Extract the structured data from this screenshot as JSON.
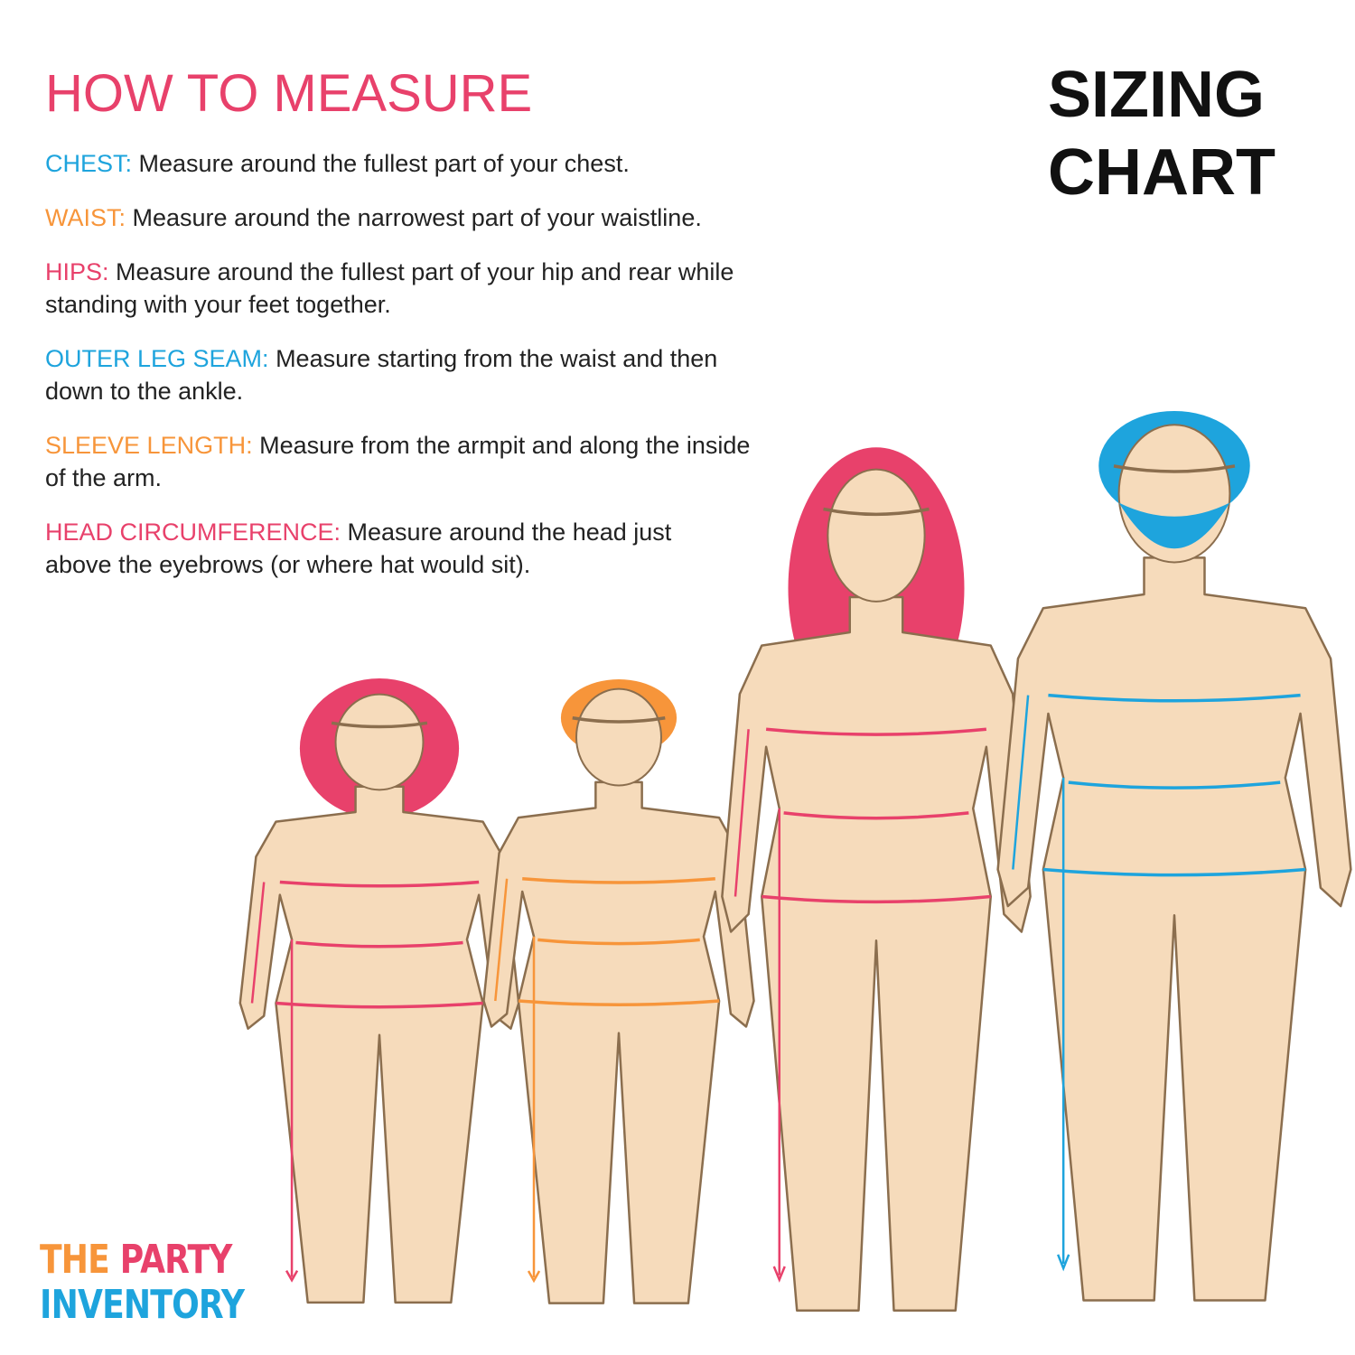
{
  "header": {
    "title": "HOW TO MEASURE",
    "sizing_line1": "SIZING",
    "sizing_line2": "CHART"
  },
  "colors": {
    "pink": "#e8416b",
    "blue": "#1ea4dd",
    "orange": "#f7953a",
    "skin": "#f6dbbb",
    "outline": "#8b6e4e"
  },
  "instructions": [
    {
      "label": "CHEST:",
      "text": " Measure around the fullest part of your chest.",
      "color": "#1ea4dd"
    },
    {
      "label": "WAIST:",
      "text": " Measure around the narrowest part of your waistline.",
      "color": "#f7953a"
    },
    {
      "label": "HIPS:",
      "text": " Measure around the fullest part of your hip and rear while standing with your feet together.",
      "color": "#e8416b"
    },
    {
      "label": "OUTER LEG SEAM:",
      "text": " Measure starting from the waist and then down to the ankle.",
      "color": "#1ea4dd"
    },
    {
      "label": "SLEEVE LENGTH:",
      "text": " Measure from the armpit and along the inside of the arm.",
      "color": "#f7953a"
    },
    {
      "label": "HEAD CIRCUMFERENCE:",
      "text": " Measure around the head just above the eyebrows (or where hat would sit).",
      "color": "#e8416b"
    }
  ],
  "logo": {
    "line1_a": "THE",
    "line1_b": "PARTY",
    "line2": "INVENTORY"
  },
  "figures": [
    {
      "name": "girl",
      "hair": "#e8416b",
      "lines": "#e8416b"
    },
    {
      "name": "boy",
      "hair": "#f7953a",
      "lines": "#f7953a"
    },
    {
      "name": "woman",
      "hair": "#e8416b",
      "lines": "#e8416b"
    },
    {
      "name": "man",
      "hair": "#1ea4dd",
      "lines": "#1ea4dd"
    }
  ]
}
